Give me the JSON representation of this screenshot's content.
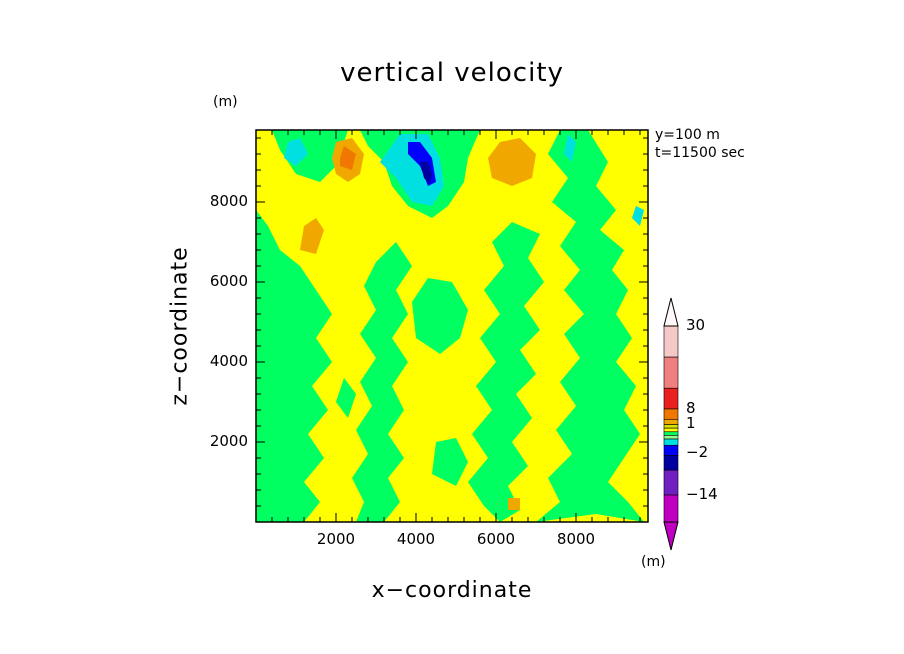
{
  "chart_data": {
    "type": "heatmap",
    "title": "vertical velocity",
    "xlabel": "x−coordinate",
    "ylabel": "z−coordinate",
    "y_unit": "(m)",
    "xlim": [
      0,
      9800
    ],
    "ylim": [
      0,
      9800
    ],
    "x_ticks": [
      2000,
      4000,
      6000,
      8000
    ],
    "x_tick_labels": [
      "2000",
      "4000",
      "6000",
      "8000"
    ],
    "y_ticks": [
      2000,
      4000,
      6000,
      8000
    ],
    "y_tick_labels": [
      "2000",
      "4000",
      "6000",
      "8000"
    ],
    "info": [
      "y=100 m",
      "t=11500 sec"
    ],
    "colorbar": {
      "unit": "(m)",
      "labels": [
        {
          "value": 30,
          "text": "30"
        },
        {
          "value": 8,
          "text": "8"
        },
        {
          "value": 1,
          "text": "1"
        },
        {
          "value": -2,
          "text": "−2"
        },
        {
          "value": -14,
          "text": "−14"
        }
      ],
      "colors_top_to_bottom": [
        "#f7c8c8",
        "#f08080",
        "#e82020",
        "#f07800",
        "#f0a800",
        "#d8e000",
        "#ffff00",
        "#00ff60",
        "#90ff90",
        "#00e0e0",
        "#0000ff",
        "#0000a0",
        "#7020c0",
        "#c000c0"
      ]
    },
    "fields": {
      "background_level": "yellow",
      "levels": [
        {
          "color": "#00ff60",
          "regions": [
            [
              [
                7.0,
                0
              ],
              [
                8.5,
                0.2
              ],
              [
                9.7,
                0
              ],
              [
                9.3,
                0.5
              ],
              [
                8.8,
                1
              ],
              [
                9.2,
                1.6
              ],
              [
                9.6,
                2.2
              ],
              [
                9.2,
                2.8
              ],
              [
                9.5,
                3.4
              ],
              [
                9.0,
                4.0
              ],
              [
                9.4,
                4.6
              ],
              [
                9.0,
                5.2
              ],
              [
                9.3,
                5.8
              ],
              [
                8.9,
                6.3
              ],
              [
                9.2,
                6.8
              ],
              [
                8.6,
                7.3
              ],
              [
                9.0,
                7.8
              ],
              [
                8.5,
                8.4
              ],
              [
                8.8,
                9.0
              ],
              [
                8.3,
                9.8
              ],
              [
                7.6,
                9.8
              ],
              [
                7.3,
                9.2
              ],
              [
                7.8,
                8.6
              ],
              [
                7.4,
                8.0
              ],
              [
                8.0,
                7.5
              ],
              [
                7.6,
                6.9
              ],
              [
                8.1,
                6.3
              ],
              [
                7.7,
                5.8
              ],
              [
                8.2,
                5.2
              ],
              [
                7.7,
                4.7
              ],
              [
                8.1,
                4.1
              ],
              [
                7.6,
                3.5
              ],
              [
                8.0,
                2.9
              ],
              [
                7.5,
                2.3
              ],
              [
                7.9,
                1.7
              ],
              [
                7.3,
                1.1
              ],
              [
                7.6,
                0.5
              ]
            ],
            [
              [
                6.1,
                0
              ],
              [
                6.6,
                0.3
              ],
              [
                6.3,
                0.9
              ],
              [
                6.8,
                1.4
              ],
              [
                6.4,
                2.0
              ],
              [
                6.9,
                2.6
              ],
              [
                6.5,
                3.2
              ],
              [
                7.0,
                3.7
              ],
              [
                6.6,
                4.3
              ],
              [
                7.1,
                4.8
              ],
              [
                6.7,
                5.4
              ],
              [
                7.2,
                6.0
              ],
              [
                6.8,
                6.6
              ],
              [
                7.1,
                7.2
              ],
              [
                6.4,
                7.5
              ],
              [
                5.9,
                7.0
              ],
              [
                6.2,
                6.4
              ],
              [
                5.7,
                5.8
              ],
              [
                6.1,
                5.2
              ],
              [
                5.6,
                4.6
              ],
              [
                6.0,
                4.0
              ],
              [
                5.5,
                3.4
              ],
              [
                5.9,
                2.8
              ],
              [
                5.4,
                2.2
              ],
              [
                5.8,
                1.6
              ],
              [
                5.3,
                1.0
              ],
              [
                5.7,
                0.4
              ]
            ],
            [
              [
                3.2,
                0
              ],
              [
                3.6,
                0.5
              ],
              [
                3.3,
                1.1
              ],
              [
                3.7,
                1.6
              ],
              [
                3.3,
                2.2
              ],
              [
                3.7,
                2.8
              ],
              [
                3.4,
                3.4
              ],
              [
                3.8,
                4.0
              ],
              [
                3.4,
                4.6
              ],
              [
                3.8,
                5.2
              ],
              [
                3.5,
                5.8
              ],
              [
                3.9,
                6.4
              ],
              [
                3.5,
                7.0
              ],
              [
                3.0,
                6.5
              ],
              [
                2.7,
                5.9
              ],
              [
                3.0,
                5.3
              ],
              [
                2.6,
                4.7
              ],
              [
                3.0,
                4.1
              ],
              [
                2.6,
                3.5
              ],
              [
                2.9,
                2.9
              ],
              [
                2.5,
                2.3
              ],
              [
                2.8,
                1.7
              ],
              [
                2.4,
                1.1
              ],
              [
                2.7,
                0.5
              ],
              [
                2.5,
                0
              ]
            ],
            [
              [
                0,
                0
              ],
              [
                1.2,
                0
              ],
              [
                1.6,
                0.5
              ],
              [
                1.2,
                1.0
              ],
              [
                1.7,
                1.6
              ],
              [
                1.3,
                2.2
              ],
              [
                1.8,
                2.8
              ],
              [
                1.4,
                3.4
              ],
              [
                1.9,
                4.0
              ],
              [
                1.5,
                4.6
              ],
              [
                1.9,
                5.2
              ],
              [
                1.5,
                5.8
              ],
              [
                1.1,
                6.4
              ],
              [
                0.6,
                6.8
              ],
              [
                0.3,
                7.4
              ],
              [
                0,
                7.8
              ]
            ],
            [
              [
                2.6,
                9.8
              ],
              [
                2.8,
                9.4
              ],
              [
                3.2,
                9.0
              ],
              [
                3.4,
                8.4
              ],
              [
                3.8,
                7.9
              ],
              [
                4.4,
                7.6
              ],
              [
                4.8,
                7.9
              ],
              [
                5.2,
                8.5
              ],
              [
                5.3,
                9.1
              ],
              [
                5.6,
                9.8
              ]
            ],
            [
              [
                0.4,
                9.8
              ],
              [
                0.6,
                9.3
              ],
              [
                1.0,
                8.7
              ],
              [
                1.6,
                8.5
              ],
              [
                2.0,
                8.9
              ],
              [
                2.2,
                9.5
              ],
              [
                2.3,
                9.8
              ]
            ],
            [
              [
                4.0,
                4.6
              ],
              [
                4.6,
                4.2
              ],
              [
                5.1,
                4.6
              ],
              [
                5.3,
                5.3
              ],
              [
                4.9,
                6.0
              ],
              [
                4.3,
                6.1
              ],
              [
                3.9,
                5.5
              ]
            ],
            [
              [
                0.6,
                2.4
              ],
              [
                1.1,
                2.0
              ],
              [
                1.3,
                2.6
              ],
              [
                0.9,
                3.2
              ],
              [
                0.5,
                2.9
              ]
            ],
            [
              [
                4.4,
                1.2
              ],
              [
                5.0,
                0.9
              ],
              [
                5.3,
                1.5
              ],
              [
                5.0,
                2.1
              ],
              [
                4.5,
                2.0
              ]
            ],
            [
              [
                8.4,
                3.0
              ],
              [
                8.8,
                2.7
              ],
              [
                9.0,
                3.3
              ],
              [
                8.6,
                3.7
              ]
            ],
            [
              [
                2.0,
                3.0
              ],
              [
                2.3,
                2.6
              ],
              [
                2.5,
                3.2
              ],
              [
                2.2,
                3.6
              ]
            ]
          ]
        },
        {
          "color": "#f0a800",
          "regions": [
            [
              [
                2.0,
                8.7
              ],
              [
                2.3,
                8.5
              ],
              [
                2.6,
                8.7
              ],
              [
                2.7,
                9.2
              ],
              [
                2.4,
                9.6
              ],
              [
                2.0,
                9.5
              ],
              [
                1.9,
                9.1
              ]
            ],
            [
              [
                5.9,
                8.6
              ],
              [
                6.4,
                8.4
              ],
              [
                6.9,
                8.6
              ],
              [
                7.0,
                9.2
              ],
              [
                6.6,
                9.6
              ],
              [
                6.1,
                9.5
              ],
              [
                5.8,
                9.1
              ]
            ],
            [
              [
                1.1,
                6.8
              ],
              [
                1.5,
                6.7
              ],
              [
                1.7,
                7.3
              ],
              [
                1.5,
                7.6
              ],
              [
                1.2,
                7.4
              ]
            ],
            [
              [
                6.3,
                0.3
              ],
              [
                6.6,
                0.3
              ],
              [
                6.6,
                0.6
              ],
              [
                6.3,
                0.6
              ]
            ]
          ]
        },
        {
          "color": "#f07800",
          "regions": [
            [
              [
                2.1,
                8.9
              ],
              [
                2.4,
                8.8
              ],
              [
                2.5,
                9.2
              ],
              [
                2.2,
                9.4
              ],
              [
                2.1,
                9.1
              ]
            ]
          ]
        },
        {
          "color": "#00e0e0",
          "regions": [
            [
              [
                3.1,
                9.0
              ],
              [
                3.5,
                8.6
              ],
              [
                3.9,
                8.0
              ],
              [
                4.4,
                7.9
              ],
              [
                4.7,
                8.4
              ],
              [
                4.6,
                9.1
              ],
              [
                4.3,
                9.7
              ],
              [
                3.6,
                9.7
              ]
            ],
            [
              [
                0.7,
                9.1
              ],
              [
                1.0,
                8.9
              ],
              [
                1.3,
                9.2
              ],
              [
                1.1,
                9.6
              ],
              [
                0.8,
                9.5
              ]
            ],
            [
              [
                7.7,
                9.2
              ],
              [
                7.9,
                9.0
              ],
              [
                8.0,
                9.5
              ],
              [
                7.8,
                9.7
              ]
            ],
            [
              [
                9.4,
                7.6
              ],
              [
                9.6,
                7.4
              ],
              [
                9.7,
                7.8
              ],
              [
                9.5,
                7.9
              ]
            ]
          ]
        },
        {
          "color": "#0000ff",
          "regions": [
            [
              [
                3.8,
                9.2
              ],
              [
                4.1,
                8.9
              ],
              [
                4.3,
                8.4
              ],
              [
                4.5,
                8.5
              ],
              [
                4.4,
                9.1
              ],
              [
                4.1,
                9.5
              ],
              [
                3.8,
                9.5
              ]
            ]
          ]
        },
        {
          "color": "#0000a0",
          "regions": [
            [
              [
                4.1,
                9.0
              ],
              [
                4.2,
                8.6
              ],
              [
                4.35,
                8.45
              ],
              [
                4.4,
                8.7
              ],
              [
                4.3,
                9.0
              ]
            ]
          ]
        }
      ]
    }
  }
}
